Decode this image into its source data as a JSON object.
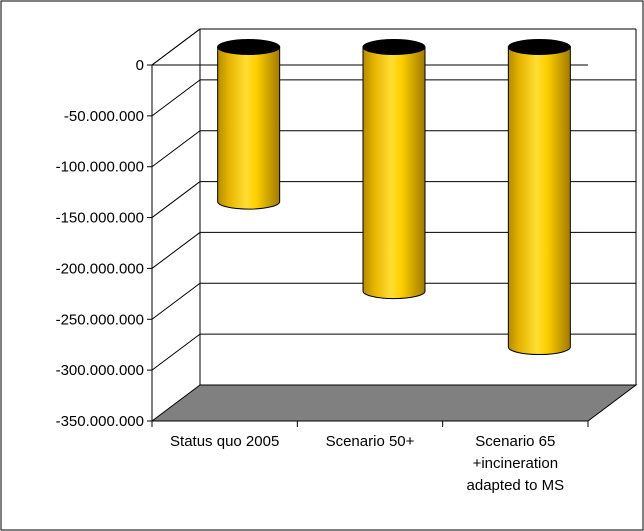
{
  "chart_data": {
    "type": "bar",
    "title": "",
    "xlabel": "",
    "ylabel": "",
    "categories": [
      [
        "Status quo 2005"
      ],
      [
        "Scenario 50+"
      ],
      [
        "Scenario 65",
        "+incineration",
        "adapted to MS"
      ]
    ],
    "values": [
      -152000000,
      -240000000,
      -295000000
    ],
    "ylim": [
      -350000000,
      0
    ],
    "yticks": [
      0,
      -50000000,
      -100000000,
      -150000000,
      -200000000,
      -250000000,
      -300000000,
      -350000000
    ],
    "ytick_labels": [
      "0",
      "-50.000.000",
      "-100.000.000",
      "-150.000.000",
      "-200.000.000",
      "-250.000.000",
      "-300.000.000",
      "-350.000.000"
    ],
    "grid": true,
    "legend": "none",
    "style": "3d-cylinder",
    "colors": {
      "bar": "#F2C200",
      "bar_top": "#000000",
      "floor": "#808080",
      "grid": "#000000",
      "background": "#ffffff"
    }
  }
}
